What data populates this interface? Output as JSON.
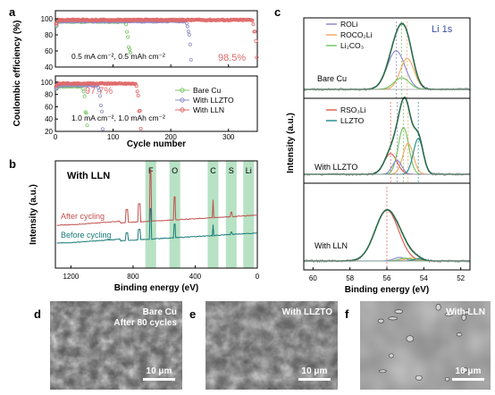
{
  "panel_labels": {
    "a": "a",
    "b": "b",
    "c": "c",
    "d": "d",
    "e": "e",
    "f": "f"
  },
  "colors": {
    "bare_cu": "#7ec86a",
    "llzto": "#8e8ec8",
    "lln": "#e06a6a",
    "roli": "#8a84c9",
    "roco2li": "#f2a45a",
    "li2co3": "#6cc35a",
    "rso3li": "#e0564a",
    "llzto_xps": "#1a8a8a",
    "envelope": "#2a6b4a",
    "raw": "#9a9a9a",
    "band": "#9fd8b0",
    "xps_after": "#c0504d",
    "xps_before": "#1a7a7a"
  },
  "chart_data": [
    {
      "id": "a",
      "type": "scatter",
      "ylabel": "Coulombic efficiency (%)",
      "xlabel": "Cycle number",
      "xlim": [
        0,
        350
      ],
      "xticks": [
        0,
        100,
        200,
        300
      ],
      "top": {
        "ylim": [
          40,
          110
        ],
        "yticks": [
          40,
          60,
          80,
          100
        ],
        "annotation": "0.5 mA cm⁻², 0.5 mAh cm⁻²",
        "value_label": "98.5%",
        "series": [
          {
            "key": "bare_cu",
            "end_cycle": 130,
            "plateau": 96.5
          },
          {
            "key": "llzto",
            "end_cycle": 235,
            "plateau": 97.0
          },
          {
            "key": "lln",
            "end_cycle": 350,
            "plateau": 98.5
          }
        ]
      },
      "bottom": {
        "ylim": [
          20,
          110
        ],
        "yticks": [
          20,
          40,
          60,
          80,
          100
        ],
        "annotation": "1.0 mA cm⁻², 1.0 mAh cm⁻²",
        "value_label": "97.7%",
        "series": [
          {
            "name": "Bare Cu",
            "key": "bare_cu",
            "end_cycle": 55,
            "plateau": 93
          },
          {
            "name": "With LLZTO",
            "key": "llzto",
            "end_cycle": 82,
            "plateau": 95
          },
          {
            "name": "With LLN",
            "key": "lln",
            "end_cycle": 148,
            "plateau": 97.7
          }
        ]
      }
    },
    {
      "id": "b",
      "type": "line",
      "title": "With LLN",
      "xlabel": "Binding energy (eV)",
      "ylabel": "Intensity (a.u.)",
      "xlim": [
        1300,
        0
      ],
      "xticks": [
        1200,
        800,
        400,
        0
      ],
      "series": [
        {
          "name": "After cycling",
          "key": "xps_after"
        },
        {
          "name": "Before cycling",
          "key": "xps_before"
        }
      ],
      "bands": [
        {
          "label": "F",
          "center": 686
        },
        {
          "label": "O",
          "center": 531
        },
        {
          "label": "C",
          "center": 285
        },
        {
          "label": "S",
          "center": 168
        },
        {
          "label": "Li",
          "center": 56
        }
      ]
    },
    {
      "id": "c",
      "type": "line",
      "title": "Li 1s",
      "xlabel": "Binding energy (eV)",
      "ylabel": "Intensity (a.u.)",
      "xlim": [
        60.5,
        51.5
      ],
      "xticks": [
        60,
        58,
        56,
        54,
        52
      ],
      "panels": [
        {
          "name": "Bare Cu",
          "legend": [
            {
              "label": "ROLi",
              "key": "roli"
            },
            {
              "label": "ROCO₂Li",
              "key": "roco2li"
            },
            {
              "label": "Li₂CO₃",
              "key": "li2co3"
            }
          ],
          "peaks": [
            {
              "key": "roli",
              "center": 55.5,
              "height": 0.6,
              "width": 0.75
            },
            {
              "key": "roco2li",
              "center": 54.9,
              "height": 0.48,
              "width": 0.6
            },
            {
              "key": "li2co3",
              "center": 55.2,
              "height": 0.18,
              "width": 0.65
            }
          ]
        },
        {
          "name": "With LLZTO",
          "legend": [
            {
              "label": "RSO₃Li",
              "key": "rso3li"
            },
            {
              "label": "LLZTO",
              "key": "llzto_xps"
            }
          ],
          "peaks": [
            {
              "key": "rso3li",
              "center": 55.8,
              "height": 0.3,
              "width": 0.55
            },
            {
              "key": "li2co3",
              "center": 55.1,
              "height": 0.68,
              "width": 0.45
            },
            {
              "key": "roco2li",
              "center": 54.85,
              "height": 0.45,
              "width": 0.45
            },
            {
              "key": "roli",
              "center": 55.45,
              "height": 0.2,
              "width": 0.4
            },
            {
              "key": "llzto_xps",
              "center": 54.3,
              "height": 0.52,
              "width": 0.42
            }
          ]
        },
        {
          "name": "With LLN",
          "legend": [],
          "peaks": [
            {
              "key": "rso3li",
              "center": 56.0,
              "height": 0.72,
              "width": 1.0
            },
            {
              "key": "roli",
              "center": 55.3,
              "height": 0.05,
              "width": 0.5
            },
            {
              "key": "roco2li",
              "center": 54.7,
              "height": 0.04,
              "width": 0.5
            },
            {
              "key": "li2co3",
              "center": 55.0,
              "height": 0.04,
              "width": 0.5
            },
            {
              "key": "llzto_xps",
              "center": 54.3,
              "height": 0.03,
              "width": 0.4
            }
          ]
        }
      ]
    }
  ],
  "sem": [
    {
      "id": "d",
      "caption_line1": "Bare Cu",
      "caption_line2": "After 80 cycles",
      "scale": "10 μm",
      "style": "rough"
    },
    {
      "id": "e",
      "caption_line1": "With LLZTO",
      "caption_line2": "",
      "scale": "10 μm",
      "style": "rough"
    },
    {
      "id": "f",
      "caption_line1": "With LLN",
      "caption_line2": "",
      "scale": "10 μm",
      "style": "smooth"
    }
  ]
}
